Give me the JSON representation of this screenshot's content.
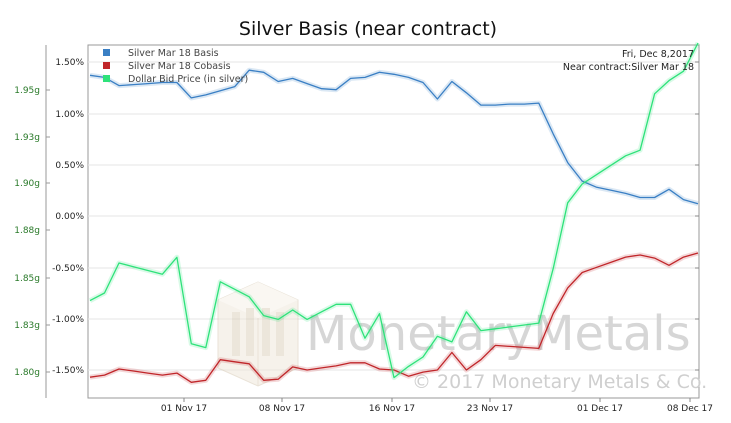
{
  "chart_data": {
    "type": "line",
    "title": "Silver Basis (near contract)",
    "info": {
      "date": "Fri, Dec 8,2017",
      "contract": "Near contract:Silver Mar 18"
    },
    "x_ticks": [
      "01 Nov 17",
      "08 Nov 17",
      "16 Nov 17",
      "23 Nov 17",
      "01 Dec 17",
      "08 Dec 17"
    ],
    "y_left": {
      "ticks": [
        "1.95g",
        "1.93g",
        "1.90g",
        "1.88g",
        "1.85g",
        "1.83g",
        "1.80g"
      ],
      "range": [
        "1.78g",
        "1.97g"
      ]
    },
    "y_right": {
      "ticks": [
        "1.50%",
        "1.00%",
        "0.50%",
        "0.00%",
        "-0.50%",
        "-1.00%",
        "-1.50%"
      ],
      "range": [
        -1.78,
        1.68
      ]
    },
    "grid": true,
    "legend_position": "top-left",
    "watermark": {
      "brand": "MonetaryMetals",
      "copyright": "© 2017 Monetary Metals & Co."
    },
    "series": [
      {
        "name": "Silver Mar 18 Basis",
        "color": "#3a7fc4",
        "axis": "right",
        "x": [
          0,
          1,
          2,
          3,
          4,
          5,
          6,
          7,
          8,
          9,
          10,
          11,
          12,
          13,
          14,
          15,
          16,
          17,
          18,
          19,
          20,
          21,
          22,
          23,
          24,
          25,
          26,
          27,
          28,
          29,
          30,
          31,
          32,
          33,
          34,
          35,
          36,
          37,
          38,
          39,
          40,
          41,
          42
        ],
        "y": [
          1.37,
          1.35,
          1.27,
          1.28,
          1.29,
          1.3,
          1.3,
          1.15,
          1.18,
          1.22,
          1.26,
          1.42,
          1.4,
          1.31,
          1.34,
          1.29,
          1.24,
          1.23,
          1.34,
          1.35,
          1.4,
          1.38,
          1.35,
          1.3,
          1.14,
          1.31,
          1.2,
          1.08,
          1.08,
          1.09,
          1.09,
          1.1,
          0.8,
          0.52,
          0.34,
          0.28,
          0.25,
          0.22,
          0.18,
          0.18,
          0.26,
          0.16,
          0.12
        ]
      },
      {
        "name": "Silver Mar 18 Cobasis",
        "color": "#c0262a",
        "axis": "right",
        "x": [
          0,
          1,
          2,
          3,
          4,
          5,
          6,
          7,
          8,
          9,
          10,
          11,
          12,
          13,
          14,
          15,
          16,
          17,
          18,
          19,
          20,
          21,
          22,
          23,
          24,
          25,
          26,
          27,
          28,
          29,
          30,
          31,
          32,
          33,
          34,
          35,
          36,
          37,
          38,
          39,
          40,
          41,
          42
        ],
        "y": [
          -1.57,
          -1.55,
          -1.49,
          -1.51,
          -1.53,
          -1.55,
          -1.53,
          -1.62,
          -1.6,
          -1.4,
          -1.42,
          -1.44,
          -1.6,
          -1.59,
          -1.47,
          -1.5,
          -1.48,
          -1.46,
          -1.43,
          -1.43,
          -1.49,
          -1.5,
          -1.56,
          -1.52,
          -1.5,
          -1.33,
          -1.5,
          -1.4,
          -1.26,
          -1.27,
          -1.28,
          -1.29,
          -0.95,
          -0.7,
          -0.55,
          -0.5,
          -0.45,
          -0.4,
          -0.38,
          -0.41,
          -0.48,
          -0.4,
          -0.36
        ]
      },
      {
        "name": "Dollar Bid Price (in silver)",
        "color": "#2ee27a",
        "axis": "left",
        "x": [
          0,
          1,
          2,
          3,
          4,
          5,
          6,
          7,
          8,
          9,
          10,
          11,
          12,
          13,
          14,
          15,
          16,
          17,
          18,
          19,
          20,
          21,
          22,
          23,
          24,
          25,
          26,
          27,
          28,
          29,
          30,
          31,
          32,
          33,
          34,
          35,
          36,
          37,
          38,
          39,
          40,
          41,
          42
        ],
        "y": [
          1.838,
          1.842,
          1.858,
          1.856,
          1.854,
          1.852,
          1.861,
          1.815,
          1.813,
          1.848,
          1.844,
          1.84,
          1.83,
          1.828,
          1.833,
          1.828,
          1.832,
          1.836,
          1.836,
          1.818,
          1.831,
          1.797,
          1.803,
          1.808,
          1.819,
          1.816,
          1.832,
          1.822,
          1.823,
          1.824,
          1.825,
          1.826,
          1.855,
          1.89,
          1.9,
          1.905,
          1.91,
          1.915,
          1.918,
          1.948,
          1.955,
          1.96,
          1.975
        ]
      }
    ]
  }
}
